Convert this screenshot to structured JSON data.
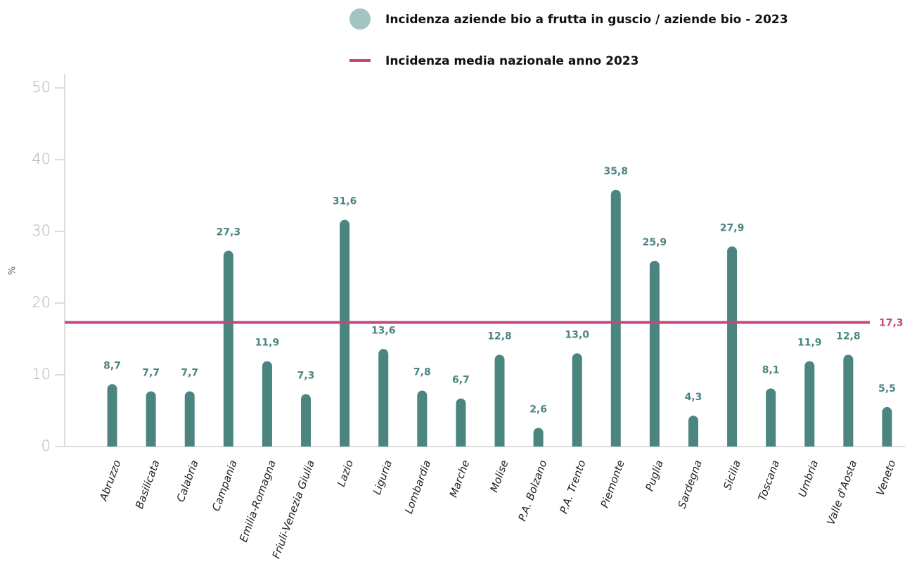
{
  "chart_data": {
    "type": "bar",
    "y_label": "%",
    "categories": [
      "Abruzzo",
      "Basilicata",
      "Calabria",
      "Campania",
      "Emilia-Romagna",
      "Friuli-Venezia Giulia",
      "Lazio",
      "Liguria",
      "Lombardia",
      "Marche",
      "Molise",
      "P.A. Bolzano",
      "P.A. Trento",
      "Piemonte",
      "Puglia",
      "Sardegna",
      "Sicilia",
      "Toscana",
      "Umbria",
      "Valle d'Aosta",
      "Veneto"
    ],
    "series": [
      {
        "name": "Incidenza aziende bio a frutta in guscio / aziende bio - 2023",
        "color": "#4a8580",
        "legend_color": "#a3c4c0",
        "values": [
          8.7,
          7.7,
          7.7,
          27.3,
          11.9,
          7.3,
          31.6,
          13.6,
          7.8,
          6.7,
          12.8,
          2.6,
          13.0,
          35.8,
          25.9,
          4.3,
          27.9,
          8.1,
          11.9,
          12.8,
          5.5
        ],
        "value_labels": [
          "8,7",
          "7,7",
          "7,7",
          "27,3",
          "11,9",
          "7,3",
          "31,6",
          "13,6",
          "7,8",
          "6,7",
          "12,8",
          "2,6",
          "13,0",
          "35,8",
          "25,9",
          "4,3",
          "27,9",
          "8,1",
          "11,9",
          "12,8",
          "5,5"
        ]
      }
    ],
    "reference_line": {
      "name": "Incidenza media nazionale anno 2023",
      "value": 17.3,
      "label": "17,3",
      "color": "#c4487f"
    },
    "ylim": [
      0,
      50
    ],
    "yticks": [
      0,
      10,
      20,
      30,
      40,
      50
    ]
  }
}
